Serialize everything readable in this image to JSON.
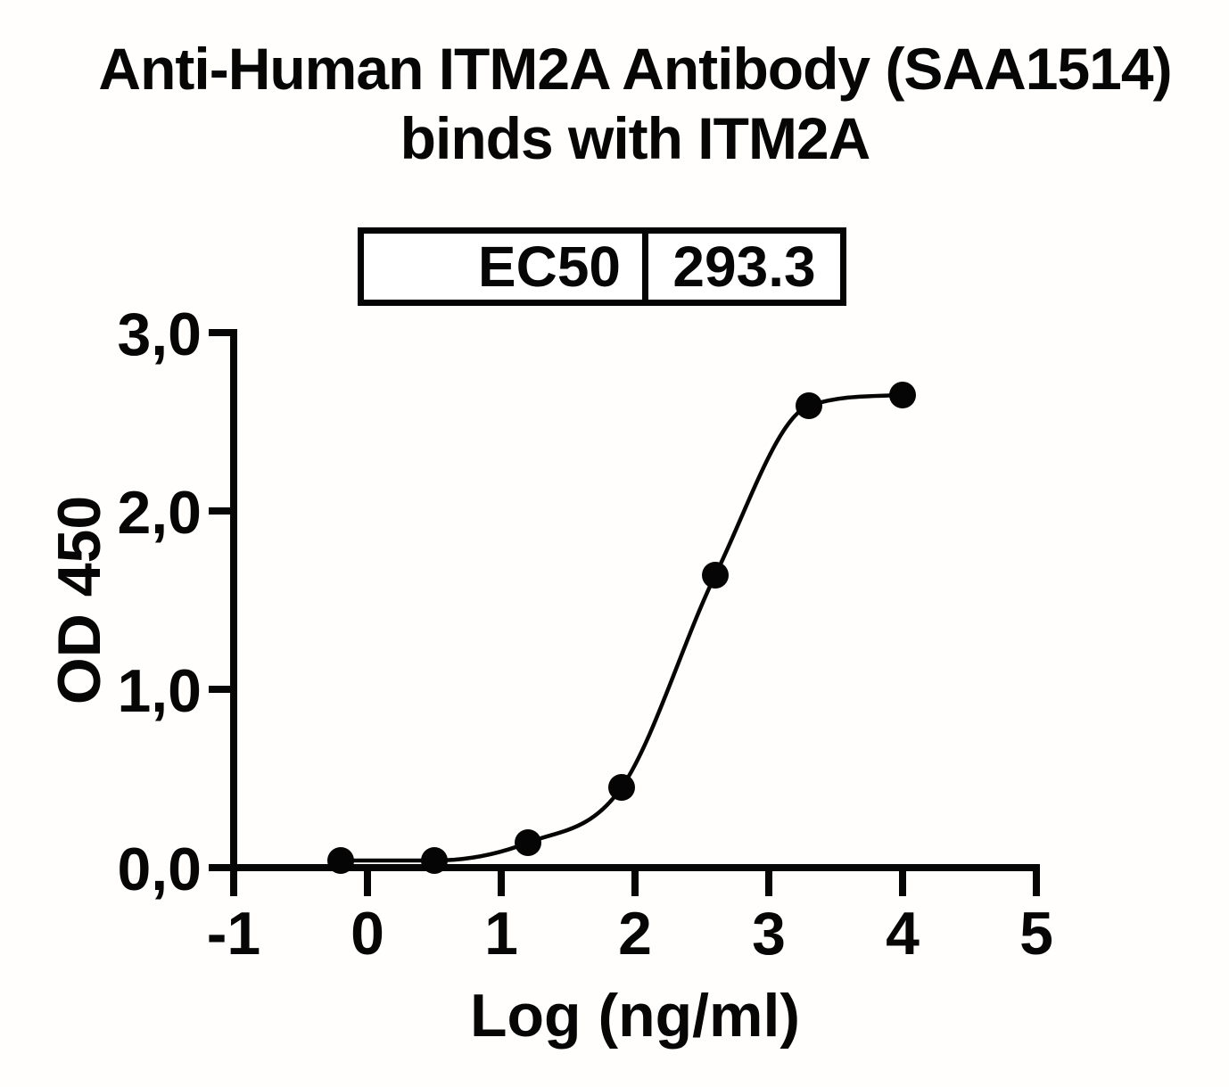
{
  "figure": {
    "background": "#fffefc",
    "ink_color": "#060606"
  },
  "chart_data": {
    "type": "scatter",
    "title": "Anti-Human ITM2A Antibody (SAA1514) binds with ITM2A",
    "title_lines": [
      "Anti-Human ITM2A Antibody (SAA1514)",
      "binds with ITM2A"
    ],
    "xlabel": "Log (ng/ml)",
    "ylabel": "OD 450",
    "xlim": [
      -1,
      5
    ],
    "ylim": [
      0,
      3
    ],
    "xticks": [
      -1,
      0,
      1,
      2,
      3,
      4,
      5
    ],
    "xtick_labels": [
      "-1",
      "0",
      "1",
      "2",
      "3",
      "4",
      "5"
    ],
    "yticks": [
      0,
      1,
      2,
      3
    ],
    "ytick_labels": [
      "0,0",
      "1,0",
      "2,0",
      "3,0"
    ],
    "decimal_separator": ",",
    "grid": false,
    "legend": null,
    "series": [
      {
        "name": "Anti-Human ITM2A Antibody binds with ITM2A",
        "marker": "filled-circle",
        "color": "#050505",
        "line": "sigmoidal-fit",
        "x": [
          -0.2,
          0.5,
          1.2,
          1.9,
          2.6,
          3.3,
          4.0
        ],
        "y": [
          0.04,
          0.04,
          0.14,
          0.45,
          1.64,
          2.59,
          2.65
        ]
      }
    ],
    "fit": {
      "model": "4PL sigmoidal dose-response",
      "ec50_label": "EC50",
      "ec50_value": "293.3"
    }
  }
}
